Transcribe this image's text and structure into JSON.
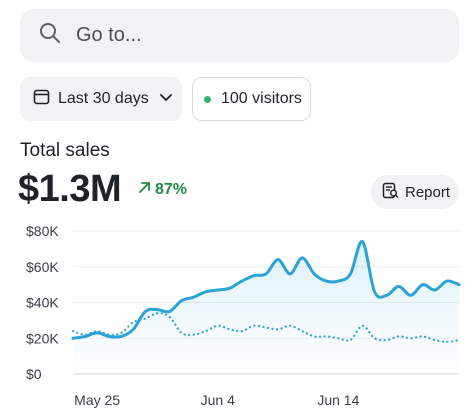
{
  "search": {
    "placeholder": "Go to..."
  },
  "filters": {
    "date_range_label": "Last 30 days",
    "visitors_label": "100 visitors"
  },
  "summary": {
    "title": "Total sales",
    "value": "$1.3M",
    "change": "87%"
  },
  "report_button": {
    "label": "Report"
  },
  "colors": {
    "accent": "#2ba3d6",
    "positive": "#1f8a4c",
    "status_dot": "#2bb673"
  },
  "icons": [
    "search-icon",
    "calendar-icon",
    "chevron-down-icon",
    "arrow-up-right-icon",
    "report-icon"
  ],
  "chart_data": {
    "type": "line",
    "x": [
      "May 23",
      "May 24",
      "May 25",
      "May 26",
      "May 27",
      "May 28",
      "May 29",
      "May 30",
      "May 31",
      "Jun 1",
      "Jun 2",
      "Jun 3",
      "Jun 4",
      "Jun 5",
      "Jun 6",
      "Jun 7",
      "Jun 8",
      "Jun 9",
      "Jun 10",
      "Jun 11",
      "Jun 12",
      "Jun 13",
      "Jun 14",
      "Jun 15",
      "Jun 16",
      "Jun 17",
      "Jun 18",
      "Jun 19",
      "Jun 20",
      "Jun 21",
      "Jun 22",
      "Jun 23",
      "Jun 24"
    ],
    "series": [
      {
        "style": "solid",
        "fill": true,
        "values": [
          20,
          21,
          23,
          21,
          21,
          25,
          35,
          36,
          35,
          41,
          43,
          46,
          47,
          48,
          52,
          55,
          56,
          64,
          56,
          65,
          56,
          52,
          52,
          56,
          74,
          46,
          44,
          49,
          44,
          50,
          47,
          52,
          50
        ]
      },
      {
        "style": "dotted",
        "fill": false,
        "values": [
          24,
          22,
          24,
          22,
          23,
          29,
          31,
          34,
          32,
          23,
          22,
          24,
          27,
          25,
          24,
          27,
          26,
          25,
          27,
          24,
          21,
          21,
          20,
          19,
          27,
          20,
          19,
          21,
          20,
          21,
          19,
          18,
          19
        ]
      }
    ],
    "ylim": [
      0,
      80
    ],
    "y_ticks": [
      {
        "value": 80000,
        "label": "$80K"
      },
      {
        "value": 60000,
        "label": "$60K"
      },
      {
        "value": 40000,
        "label": "$40K"
      },
      {
        "value": 20000,
        "label": "$20K"
      },
      {
        "value": 0,
        "label": "$0"
      }
    ],
    "x_ticks": [
      "May 25",
      "Jun 4",
      "Jun 14"
    ],
    "grid": true,
    "legend": "none"
  }
}
